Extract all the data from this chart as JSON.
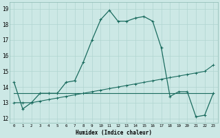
{
  "xlabel": "Humidex (Indice chaleur)",
  "bg_color": "#cce8e5",
  "grid_color": "#b0d4d0",
  "line_color": "#1a6b5e",
  "xlim": [
    -0.5,
    23.5
  ],
  "ylim": [
    11.7,
    19.4
  ],
  "yticks": [
    12,
    13,
    14,
    15,
    16,
    17,
    18,
    19
  ],
  "xticks": [
    0,
    1,
    2,
    3,
    4,
    5,
    6,
    7,
    8,
    9,
    10,
    11,
    12,
    13,
    14,
    15,
    16,
    17,
    18,
    19,
    20,
    21,
    22,
    23
  ],
  "series1_x": [
    0,
    1,
    2,
    3,
    4,
    5,
    6,
    7,
    8,
    9,
    10,
    11,
    12,
    13,
    14,
    15,
    16,
    17,
    18,
    19,
    20,
    21,
    22,
    23
  ],
  "series1_y": [
    14.3,
    12.6,
    13.0,
    13.6,
    13.6,
    13.6,
    14.3,
    14.4,
    15.6,
    17.0,
    18.3,
    18.9,
    18.2,
    18.2,
    18.4,
    18.5,
    18.2,
    16.5,
    13.4,
    13.7,
    13.7,
    12.1,
    12.2,
    13.6
  ],
  "series2_x": [
    0,
    1,
    2,
    3,
    4,
    5,
    6,
    7,
    8,
    9,
    10,
    11,
    12,
    13,
    14,
    15,
    16,
    17,
    18,
    19,
    20,
    21,
    22,
    23
  ],
  "series2_y": [
    13.0,
    13.0,
    13.0,
    13.1,
    13.2,
    13.3,
    13.4,
    13.5,
    13.6,
    13.7,
    13.8,
    13.9,
    14.0,
    14.1,
    14.2,
    14.3,
    14.4,
    14.5,
    14.6,
    14.7,
    14.8,
    14.9,
    15.0,
    15.4
  ],
  "series3_x": [
    0,
    1,
    2,
    3,
    4,
    5,
    6,
    7,
    8,
    9,
    10,
    11,
    12,
    13,
    14,
    15,
    16,
    17,
    18,
    19,
    20,
    21,
    22,
    23
  ],
  "series3_y": [
    13.6,
    13.6,
    13.6,
    13.6,
    13.6,
    13.6,
    13.6,
    13.6,
    13.6,
    13.6,
    13.6,
    13.6,
    13.6,
    13.6,
    13.6,
    13.6,
    13.6,
    13.6,
    13.6,
    13.6,
    13.6,
    13.6,
    13.6,
    13.6
  ]
}
